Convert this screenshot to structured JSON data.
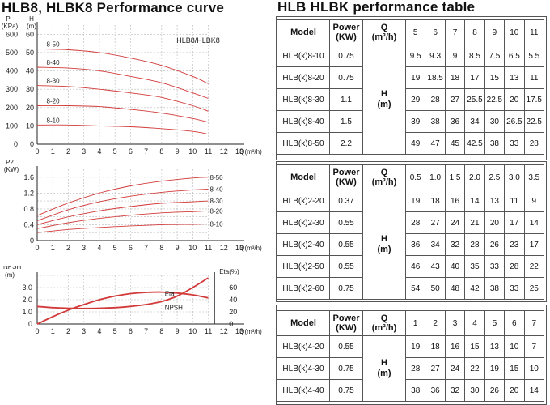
{
  "titles": {
    "left": "HLB8, HLBK8 Performance curve",
    "right": "HLB HLBK performance table"
  },
  "chart_data": [
    {
      "type": "line",
      "name_tag": "HLB8/HLBK8",
      "ylabel_top": "P",
      "ylabel_unit_kpa": "(KPa)",
      "ylabel_h": "H",
      "ylabel_unit_m": "(m)",
      "xlabel": "Q(m³/h)",
      "xlim": [
        0,
        13
      ],
      "x_ticks": [
        "0",
        "1",
        "2",
        "3",
        "4",
        "5",
        "6",
        "7",
        "8",
        "9",
        "10",
        "11",
        "12",
        "13"
      ],
      "yleft_ticks": [
        "0",
        "100",
        "200",
        "300",
        "400",
        "500",
        "600"
      ],
      "yright_ticks": [
        "0",
        "10",
        "20",
        "30",
        "40",
        "50",
        "60"
      ],
      "ylim": [
        0,
        65
      ],
      "series": [
        {
          "name": "8-50",
          "x": [
            0,
            2,
            4,
            6,
            8,
            10,
            11
          ],
          "y": [
            52,
            51.5,
            50,
            47,
            43,
            37,
            33
          ]
        },
        {
          "name": "8-40",
          "x": [
            0,
            2,
            4,
            6,
            8,
            10,
            11
          ],
          "y": [
            42,
            41.5,
            40,
            37,
            33.5,
            28,
            25
          ]
        },
        {
          "name": "8-30",
          "x": [
            0,
            2,
            4,
            6,
            8,
            10,
            11
          ],
          "y": [
            32,
            31.5,
            30,
            28,
            25.5,
            21,
            18
          ]
        },
        {
          "name": "8-20",
          "x": [
            0,
            2,
            4,
            6,
            8,
            10,
            11
          ],
          "y": [
            21,
            21,
            20.5,
            19,
            17,
            14,
            12
          ]
        },
        {
          "name": "8-10",
          "x": [
            0,
            2,
            4,
            6,
            8,
            10,
            11
          ],
          "y": [
            10.5,
            10.5,
            10,
            9.5,
            8.5,
            7,
            5.5
          ]
        }
      ]
    },
    {
      "type": "line",
      "ylabel": "P2",
      "ylabel_unit": "(KW)",
      "xlabel": "Q(m³/h)",
      "xlim": [
        0,
        13
      ],
      "x_ticks": [
        "0",
        "1",
        "2",
        "3",
        "4",
        "5",
        "6",
        "7",
        "8",
        "9",
        "10",
        "11",
        "12",
        "13"
      ],
      "y_ticks": [
        "0",
        "0.4",
        "0.8",
        "1.2",
        "1.6"
      ],
      "ylim": [
        0,
        1.8
      ],
      "series": [
        {
          "name": "8-50",
          "x": [
            0,
            2,
            4,
            6,
            8,
            10,
            11
          ],
          "y": [
            0.63,
            0.95,
            1.2,
            1.38,
            1.5,
            1.58,
            1.6
          ]
        },
        {
          "name": "8-40",
          "x": [
            0,
            2,
            4,
            6,
            8,
            10,
            11
          ],
          "y": [
            0.5,
            0.78,
            0.98,
            1.12,
            1.22,
            1.28,
            1.3
          ]
        },
        {
          "name": "8-30",
          "x": [
            0,
            2,
            4,
            6,
            8,
            10,
            11
          ],
          "y": [
            0.4,
            0.6,
            0.75,
            0.86,
            0.94,
            0.98,
            1.0
          ]
        },
        {
          "name": "8-20",
          "x": [
            0,
            2,
            4,
            6,
            8,
            10,
            11
          ],
          "y": [
            0.3,
            0.45,
            0.56,
            0.64,
            0.7,
            0.73,
            0.75
          ]
        },
        {
          "name": "8-10",
          "x": [
            0,
            2,
            4,
            6,
            8,
            10,
            11
          ],
          "y": [
            0.2,
            0.28,
            0.33,
            0.37,
            0.4,
            0.41,
            0.42
          ]
        }
      ]
    },
    {
      "type": "line",
      "ylabel_left": "NPSH",
      "ylabel_left_unit": "(m)",
      "ylabel_right": "Eta(%)",
      "xlabel": "Q(m³/h)",
      "xlim": [
        0,
        13
      ],
      "x_ticks": [
        "0",
        "1",
        "2",
        "3",
        "4",
        "5",
        "6",
        "7",
        "8",
        "9",
        "10",
        "11",
        "12",
        "13"
      ],
      "yleft_ticks": [
        "0",
        "1.0",
        "2.0",
        "3.0"
      ],
      "yright_ticks": [
        "0",
        "20",
        "40",
        "60"
      ],
      "series": [
        {
          "name": "Eta",
          "axis": "right",
          "x": [
            0,
            1,
            2,
            3,
            4,
            5,
            6,
            7,
            8,
            9,
            10,
            11
          ],
          "y": [
            0,
            12,
            23,
            32,
            40,
            46,
            50,
            52,
            52.5,
            51,
            48,
            43
          ]
        },
        {
          "name": "NPSH",
          "axis": "left",
          "x": [
            0,
            1,
            2,
            3,
            4,
            5,
            6,
            7,
            8,
            9,
            10,
            11
          ],
          "y": [
            1.45,
            1.35,
            1.3,
            1.28,
            1.3,
            1.35,
            1.45,
            1.6,
            1.85,
            2.3,
            3.0,
            3.8
          ]
        }
      ]
    }
  ],
  "tables": [
    {
      "headers": {
        "model": "Model",
        "power": "Power",
        "power_unit": "(KW)",
        "q": "Q",
        "q_unit": "(m³/h)"
      },
      "q_values": [
        "5",
        "6",
        "7",
        "8",
        "9",
        "10",
        "11"
      ],
      "h_label": "H",
      "h_unit": "(m)",
      "rows": [
        {
          "model": "HLB(k)8-10",
          "power": "0.75",
          "values": [
            "9.5",
            "9.3",
            "9",
            "8.5",
            "7.5",
            "6.5",
            "5.5"
          ]
        },
        {
          "model": "HLB(k)8-20",
          "power": "0.75",
          "values": [
            "19",
            "18.5",
            "18",
            "17",
            "15",
            "13",
            "11"
          ]
        },
        {
          "model": "HLB(k)8-30",
          "power": "1.1",
          "values": [
            "29",
            "28",
            "27",
            "25.5",
            "22.5",
            "20",
            "17.5"
          ]
        },
        {
          "model": "HLB(k)8-40",
          "power": "1.5",
          "values": [
            "39",
            "38",
            "36",
            "34",
            "30",
            "26.5",
            "22.5"
          ]
        },
        {
          "model": "HLB(k)8-50",
          "power": "2.2",
          "values": [
            "49",
            "47",
            "45",
            "42.5",
            "38",
            "33",
            "28"
          ]
        }
      ]
    },
    {
      "headers": {
        "model": "Model",
        "power": "Power",
        "power_unit": "(KW)",
        "q": "Q",
        "q_unit": "(m³/h)"
      },
      "q_values": [
        "0.5",
        "1.0",
        "1.5",
        "2.0",
        "2.5",
        "3.0",
        "3.5"
      ],
      "h_label": "H",
      "h_unit": "(m)",
      "rows": [
        {
          "model": "HLB(k)2-20",
          "power": "0.37",
          "values": [
            "19",
            "18",
            "16",
            "14",
            "13",
            "11",
            "9"
          ]
        },
        {
          "model": "HLB(k)2-30",
          "power": "0.55",
          "values": [
            "28",
            "27",
            "24",
            "21",
            "20",
            "17",
            "14"
          ]
        },
        {
          "model": "HLB(k)2-40",
          "power": "0.55",
          "values": [
            "36",
            "34",
            "32",
            "28",
            "26",
            "23",
            "17"
          ]
        },
        {
          "model": "HLB(k)2-50",
          "power": "0.55",
          "values": [
            "46",
            "43",
            "40",
            "35",
            "33",
            "28",
            "22"
          ]
        },
        {
          "model": "HLB(k)2-60",
          "power": "0.75",
          "values": [
            "54",
            "50",
            "48",
            "42",
            "38",
            "33",
            "25"
          ]
        }
      ]
    },
    {
      "headers": {
        "model": "Model",
        "power": "Power",
        "power_unit": "(KW)",
        "q": "Q",
        "q_unit": "(m³/h)"
      },
      "q_values": [
        "1",
        "2",
        "3",
        "4",
        "5",
        "6",
        "7"
      ],
      "h_label": "H",
      "h_unit": "(m)",
      "rows": [
        {
          "model": "HLB(k)4-20",
          "power": "0.55",
          "values": [
            "19",
            "18",
            "16",
            "15",
            "13",
            "10",
            "7"
          ]
        },
        {
          "model": "HLB(k)4-30",
          "power": "0.75",
          "values": [
            "28",
            "27",
            "24",
            "22",
            "19",
            "15",
            "10"
          ]
        },
        {
          "model": "HLB(k)4-40",
          "power": "0.75",
          "values": [
            "38",
            "36",
            "32",
            "30",
            "26",
            "20",
            "14"
          ]
        }
      ]
    }
  ],
  "colors": {
    "curve": "#d23a3a",
    "grid": "#b8b8b8",
    "axis": "#222222"
  }
}
